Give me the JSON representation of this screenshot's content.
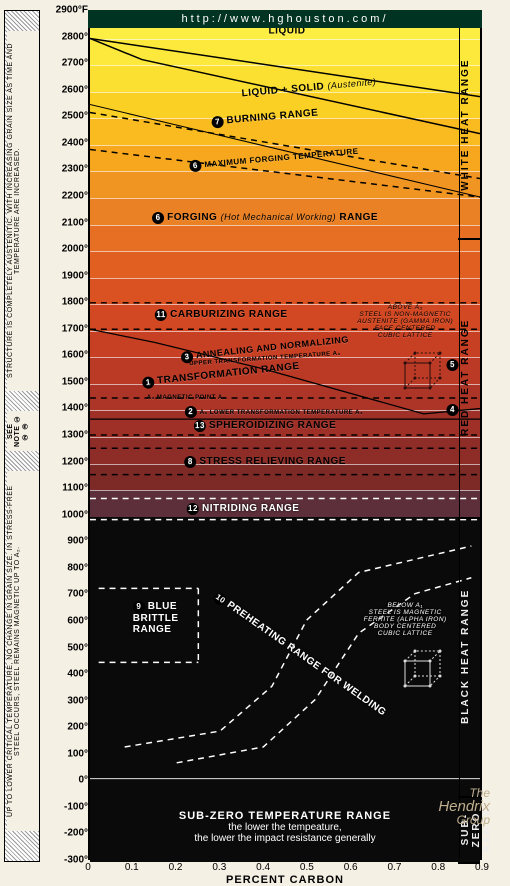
{
  "meta": {
    "url": "http://www.hghouston.com/",
    "logo_top": "The",
    "logo_mid": "Hendrix",
    "logo_bot": "Group"
  },
  "axes": {
    "y_unit": "°F",
    "y_min": -300,
    "y_max": 2900,
    "y_step": 100,
    "y_top_label": "2900°F",
    "x_label": "PERCENT CARBON",
    "x_min": 0.0,
    "x_max": 0.9,
    "x_ticks": [
      "0",
      "0.1",
      "0.2",
      "0.3",
      "0.4",
      "0.5",
      "0.6",
      "0.7",
      "0.8",
      "0.9"
    ]
  },
  "bands": [
    {
      "from": 2900,
      "to": 2800,
      "color": "#fdee44"
    },
    {
      "from": 2800,
      "to": 2700,
      "color": "#fde93b"
    },
    {
      "from": 2700,
      "to": 2600,
      "color": "#fce031"
    },
    {
      "from": 2600,
      "to": 2500,
      "color": "#fbd025"
    },
    {
      "from": 2500,
      "to": 2400,
      "color": "#f9bb1f"
    },
    {
      "from": 2400,
      "to": 2300,
      "color": "#f6a71e"
    },
    {
      "from": 2300,
      "to": 2200,
      "color": "#f19522"
    },
    {
      "from": 2200,
      "to": 2100,
      "color": "#eb8125"
    },
    {
      "from": 2100,
      "to": 2000,
      "color": "#e66f23"
    },
    {
      "from": 2000,
      "to": 1900,
      "color": "#e15f21"
    },
    {
      "from": 1900,
      "to": 1800,
      "color": "#da5221"
    },
    {
      "from": 1800,
      "to": 1700,
      "color": "#d24822"
    },
    {
      "from": 1700,
      "to": 1600,
      "color": "#c84024"
    },
    {
      "from": 1600,
      "to": 1500,
      "color": "#bb3a26"
    },
    {
      "from": 1500,
      "to": 1400,
      "color": "#ad3527"
    },
    {
      "from": 1400,
      "to": 1300,
      "color": "#9e3027"
    },
    {
      "from": 1300,
      "to": 1200,
      "color": "#8e2d27"
    },
    {
      "from": 1200,
      "to": 1100,
      "color": "#7d2a26"
    },
    {
      "from": 1100,
      "to": 1000,
      "color": "#5c2f3a"
    },
    {
      "from": 1000,
      "to": -300,
      "color": "#0a0a0a"
    }
  ],
  "side_ranges": [
    {
      "label": "WHITE HEAT RANGE",
      "from": 2900,
      "to": 2050,
      "color": "#222"
    },
    {
      "label": "RED HEAT RANGE",
      "from": 2050,
      "to": 1000,
      "color": "#b22"
    },
    {
      "label": "BLACK HEAT RANGE",
      "from": 1000,
      "to": -50,
      "color": "#111"
    },
    {
      "label": "SUB-ZERO RANGE",
      "from": -50,
      "to": -300,
      "color": "#111"
    }
  ],
  "annotations": [
    {
      "n": "",
      "text": "LIQUID",
      "yF": 2830,
      "xC": 0.45,
      "dark": true
    },
    {
      "n": "",
      "text": "LIQUID + SOLID",
      "sub": "(Austenite)",
      "yF": 2615,
      "xC": 0.5,
      "dark": true,
      "rot": -5
    },
    {
      "n": "7",
      "text": "BURNING RANGE",
      "yF": 2500,
      "xC": 0.4,
      "dark": true,
      "rot": -5
    },
    {
      "n": "6",
      "text": "MAXIMUM FORGING TEMPERATURE",
      "yF": 2345,
      "xC": 0.42,
      "dark": true,
      "size": 8,
      "rot": -5
    },
    {
      "n": "6",
      "text": "FORGING",
      "sub": "(Hot Mechanical Working)",
      "tail": "RANGE",
      "yF": 2125,
      "xC": 0.4,
      "dark": true
    },
    {
      "n": "11",
      "text": "CARBURIZING RANGE",
      "yF": 1760,
      "xC": 0.3,
      "dark": true
    },
    {
      "n": "3",
      "text": "ANNEALING AND NORMALIZING",
      "yF": 1630,
      "xC": 0.4,
      "dark": true,
      "rot": -6,
      "size": 9
    },
    {
      "n": "",
      "text": "UPPER TRANSFORMATION TEMPERATURE A₃",
      "yF": 1595,
      "xC": 0.4,
      "dark": true,
      "size": 6,
      "rot": -4
    },
    {
      "n": "1",
      "text": "TRANSFORMATION RANGE",
      "yF": 1535,
      "xC": 0.3,
      "dark": true,
      "rot": -6
    },
    {
      "n": "",
      "text": "A₂ MAGNETIC POINT A₂",
      "yF": 1445,
      "xC": 0.22,
      "dark": true,
      "size": 6
    },
    {
      "n": "2",
      "text": "A₁ LOWER TRANSFORMATION TEMPERATURE A₁",
      "yF": 1395,
      "xC": 0.42,
      "dark": true,
      "size": 6
    },
    {
      "n": "13",
      "text": "SPHEROIDIZING RANGE",
      "yF": 1340,
      "xC": 0.4,
      "dark": true
    },
    {
      "n": "8",
      "text": "STRESS RELIEVING RANGE",
      "yF": 1205,
      "xC": 0.4,
      "dark": true
    },
    {
      "n": "12",
      "text": "NITRIDING RANGE",
      "yF": 1030,
      "xC": 0.35,
      "dark": false
    },
    {
      "n": "9",
      "text": "BLUE",
      "line2": "BRITTLE",
      "line3": "RANGE",
      "yF": 620,
      "xC": 0.15,
      "dark": false
    },
    {
      "n": "10",
      "text": "PREHEATING RANGE FOR WELDING",
      "yF": 480,
      "xC": 0.48,
      "dark": false,
      "rot": 35,
      "size": 10
    }
  ],
  "lattice_notes": {
    "upper": {
      "yF": 1800,
      "xC": 0.72,
      "lines": [
        "ABOVE A₃",
        "STEEL IS NON-MAGNETIC",
        "AUSTENITE (GAMMA IRON)",
        "FACE CENTERED",
        "CUBIC LATTICE"
      ]
    },
    "lower": {
      "yF": 680,
      "xC": 0.72,
      "lines": [
        "BELOW A₁",
        "STEEL IS MAGNETIC",
        "FERRITE (ALPHA IRON)",
        "BODY CENTERED",
        "CUBIC LATTICE"
      ]
    }
  },
  "subzero": {
    "title": "SUB-ZERO TEMPERATURE RANGE",
    "line1": "the lower the tempeature,",
    "line2": "the lower the impact resistance generally"
  },
  "left_notes": {
    "upper": "STRUCTURE IS COMPLETELY AUSTENITIC. WITH INCREASING GRAIN SIZE AS TIME AND TEMPERATURE ARE INCREASED.",
    "lower": "UP TO LOWER CRITICAL TEMPERATURE, NO CHANGE IN GRAIN SIZE. IN STRESS-FREE STEEL OCCURS, STEEL REMAINS MAGNETIC UP TO A₂.",
    "see": "SEE NOTE ① ② ③"
  },
  "side_markers": {
    "five_yF": 1570,
    "four_yF": 1400
  }
}
